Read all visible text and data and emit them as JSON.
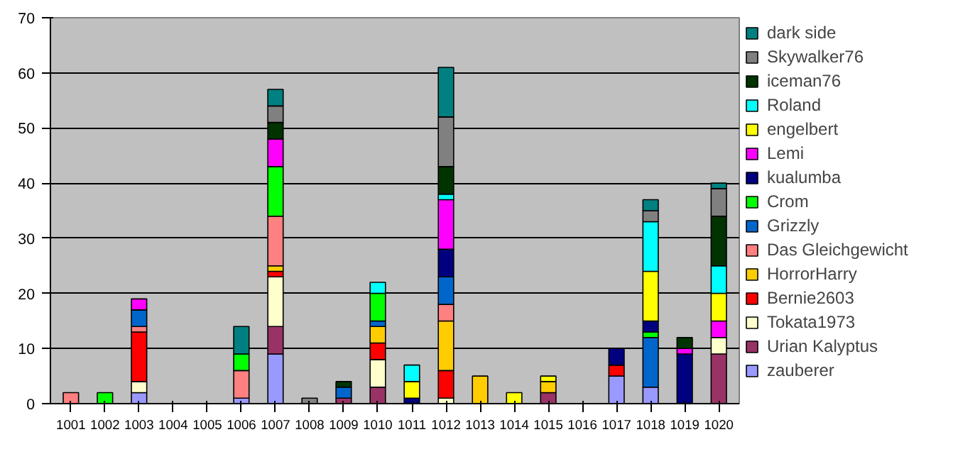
{
  "chart_data": {
    "type": "bar",
    "stacked": true,
    "categories": [
      "1001",
      "1002",
      "1003",
      "1004",
      "1005",
      "1006",
      "1007",
      "1008",
      "1009",
      "1010",
      "1011",
      "1012",
      "1013",
      "1014",
      "1015",
      "1016",
      "1017",
      "1018",
      "1019",
      "1020"
    ],
    "series": [
      {
        "name": "zauberer",
        "color": "#9999ff",
        "values": [
          null,
          null,
          2,
          null,
          null,
          1,
          9,
          null,
          null,
          null,
          null,
          null,
          null,
          null,
          null,
          null,
          5,
          3,
          null,
          null
        ]
      },
      {
        "name": "Urian Kalyptus",
        "color": "#993366",
        "values": [
          null,
          null,
          null,
          null,
          null,
          null,
          5,
          null,
          1,
          3,
          null,
          null,
          null,
          null,
          2,
          null,
          null,
          null,
          null,
          9
        ]
      },
      {
        "name": "Tokata1973",
        "color": "#ffffcc",
        "values": [
          null,
          null,
          2,
          null,
          null,
          null,
          9,
          null,
          null,
          5,
          null,
          1,
          null,
          null,
          null,
          null,
          null,
          null,
          null,
          3
        ]
      },
      {
        "name": "Bernie2603",
        "color": "#ff0000",
        "values": [
          null,
          null,
          9,
          null,
          null,
          null,
          1,
          null,
          null,
          3,
          null,
          5,
          null,
          null,
          null,
          null,
          2,
          null,
          null,
          null
        ]
      },
      {
        "name": "HorrorHarry",
        "color": "#ffcc00",
        "values": [
          null,
          null,
          null,
          null,
          null,
          null,
          1,
          null,
          null,
          3,
          null,
          9,
          5,
          null,
          2,
          null,
          null,
          null,
          null,
          null
        ]
      },
      {
        "name": "Das Gleichgewicht",
        "color": "#ff8080",
        "values": [
          2,
          null,
          1,
          null,
          null,
          5,
          9,
          null,
          null,
          null,
          null,
          3,
          null,
          null,
          null,
          null,
          null,
          null,
          null,
          null
        ]
      },
      {
        "name": "Grizzly",
        "color": "#0066cc",
        "values": [
          null,
          null,
          3,
          null,
          null,
          null,
          null,
          null,
          2,
          1,
          null,
          5,
          null,
          null,
          null,
          null,
          null,
          9,
          null,
          null
        ]
      },
      {
        "name": "Crom",
        "color": "#00ff00",
        "values": [
          null,
          2,
          null,
          null,
          null,
          3,
          9,
          null,
          null,
          5,
          null,
          null,
          null,
          null,
          null,
          null,
          null,
          1,
          null,
          null
        ]
      },
      {
        "name": "kualumba",
        "color": "#000080",
        "values": [
          null,
          null,
          null,
          null,
          null,
          null,
          null,
          null,
          null,
          null,
          1,
          5,
          null,
          null,
          null,
          null,
          3,
          2,
          9,
          null
        ]
      },
      {
        "name": "Lemi",
        "color": "#ff00ff",
        "values": [
          null,
          null,
          2,
          null,
          null,
          null,
          5,
          null,
          null,
          null,
          null,
          9,
          null,
          null,
          null,
          null,
          null,
          null,
          1,
          3
        ]
      },
      {
        "name": "engelbert",
        "color": "#ffff00",
        "values": [
          null,
          null,
          null,
          null,
          null,
          null,
          null,
          null,
          null,
          null,
          3,
          null,
          null,
          2,
          1,
          null,
          null,
          9,
          null,
          5
        ]
      },
      {
        "name": "Roland",
        "color": "#00ffff",
        "values": [
          null,
          null,
          null,
          null,
          null,
          null,
          null,
          null,
          null,
          2,
          3,
          1,
          null,
          null,
          null,
          null,
          null,
          9,
          null,
          5
        ]
      },
      {
        "name": "iceman76",
        "color": "#003300",
        "values": [
          null,
          null,
          null,
          null,
          null,
          null,
          3,
          null,
          1,
          null,
          null,
          5,
          null,
          null,
          null,
          null,
          null,
          null,
          2,
          9
        ]
      },
      {
        "name": "Skywalker76",
        "color": "#808080",
        "values": [
          null,
          null,
          null,
          null,
          null,
          null,
          3,
          1,
          null,
          null,
          null,
          9,
          null,
          null,
          null,
          null,
          null,
          2,
          null,
          5
        ]
      },
      {
        "name": "dark side",
        "color": "#008080",
        "values": [
          null,
          null,
          null,
          null,
          null,
          5,
          3,
          null,
          null,
          null,
          null,
          9,
          null,
          null,
          null,
          null,
          null,
          2,
          null,
          1
        ]
      }
    ],
    "ylim": [
      0,
      70
    ],
    "yticks": [
      0,
      10,
      20,
      30,
      40,
      50,
      60,
      70
    ],
    "grid": "y",
    "legend": "right"
  }
}
